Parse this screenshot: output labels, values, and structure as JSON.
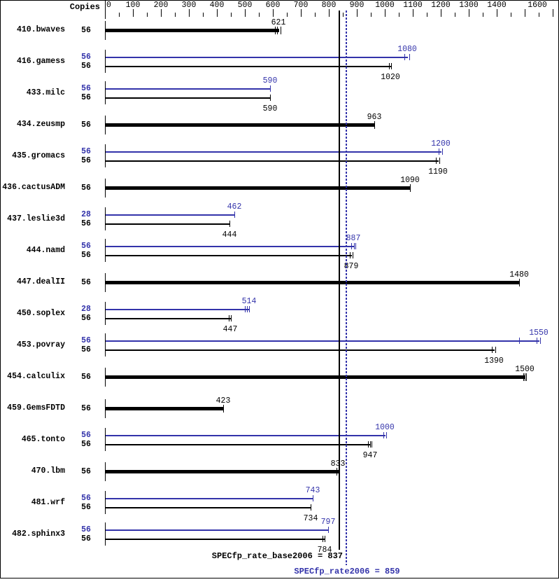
{
  "header": {
    "copies_label": "Copies"
  },
  "colors": {
    "peak_blue": "#3333aa",
    "base_black": "#000000",
    "background": "#ffffff"
  },
  "axis": {
    "min": 0,
    "max": 1600,
    "major_step": 100,
    "minor_step": 50,
    "tick_labels": [
      "0",
      "100",
      "200",
      "300",
      "400",
      "500",
      "600",
      "700",
      "800",
      "900",
      "1000",
      "1100",
      "1200",
      "1300",
      "1400",
      "1600"
    ],
    "skipped_label": "1500"
  },
  "footer": {
    "base_label": "SPECfp_rate_base2006 = 837",
    "peak_label": "SPECfp_rate2006 = 859"
  },
  "chart_data": {
    "type": "bar",
    "orientation": "horizontal",
    "title": "",
    "xlabel": "",
    "ylabel": "Copies",
    "xlim": [
      0,
      1600
    ],
    "grid": false,
    "legend": "none",
    "summary": {
      "SPECfp_rate_base2006": 837,
      "SPECfp_rate2006": 859
    },
    "reference_lines": [
      {
        "name": "base",
        "value": 837,
        "style": "solid",
        "color": "#000000"
      },
      {
        "name": "peak",
        "value": 859,
        "style": "dotted",
        "color": "#3333aa"
      }
    ],
    "benchmarks": [
      {
        "name": "410.bwaves",
        "bars": [
          {
            "series": "base",
            "copies": 56,
            "value": 621,
            "marks": [
              608,
              616,
              627
            ]
          }
        ]
      },
      {
        "name": "416.gamess",
        "bars": [
          {
            "series": "peak",
            "copies": 56,
            "value": 1080,
            "marks": [
              1070,
              1088
            ]
          },
          {
            "series": "base",
            "copies": 56,
            "value": 1020,
            "marks": [
              1014,
              1022
            ]
          }
        ]
      },
      {
        "name": "433.milc",
        "bars": [
          {
            "series": "peak",
            "copies": 56,
            "value": 590,
            "marks": [
              590
            ]
          },
          {
            "series": "base",
            "copies": 56,
            "value": 590,
            "marks": [
              590
            ]
          }
        ]
      },
      {
        "name": "434.zeusmp",
        "bars": [
          {
            "series": "base",
            "copies": 56,
            "value": 963,
            "marks": [
              963
            ]
          }
        ]
      },
      {
        "name": "435.gromacs",
        "bars": [
          {
            "series": "peak",
            "copies": 56,
            "value": 1200,
            "marks": [
              1192,
              1205
            ]
          },
          {
            "series": "base",
            "copies": 56,
            "value": 1190,
            "marks": [
              1183,
              1196
            ]
          }
        ]
      },
      {
        "name": "436.cactusADM",
        "bars": [
          {
            "series": "base",
            "copies": 56,
            "value": 1090,
            "marks": [
              1090
            ]
          }
        ]
      },
      {
        "name": "437.leslie3d",
        "bars": [
          {
            "series": "peak",
            "copies": 28,
            "value": 462,
            "marks": [
              462
            ]
          },
          {
            "series": "base",
            "copies": 56,
            "value": 444,
            "marks": [
              444
            ]
          }
        ]
      },
      {
        "name": "444.namd",
        "bars": [
          {
            "series": "peak",
            "copies": 56,
            "value": 887,
            "marks": [
              880,
              890,
              896
            ]
          },
          {
            "series": "base",
            "copies": 56,
            "value": 879,
            "marks": [
              874,
              884
            ]
          }
        ]
      },
      {
        "name": "447.dealII",
        "bars": [
          {
            "series": "base",
            "copies": 56,
            "value": 1480,
            "marks": [
              1480
            ]
          }
        ]
      },
      {
        "name": "450.soplex",
        "bars": [
          {
            "series": "peak",
            "copies": 28,
            "value": 514,
            "marks": [
              500,
              508,
              515
            ]
          },
          {
            "series": "base",
            "copies": 56,
            "value": 447,
            "marks": [
              442,
              450
            ]
          }
        ]
      },
      {
        "name": "453.povray",
        "bars": [
          {
            "series": "peak",
            "copies": 56,
            "value": 1550,
            "marks": [
              1480,
              1543,
              1554
            ]
          },
          {
            "series": "base",
            "copies": 56,
            "value": 1390,
            "marks": [
              1383,
              1395
            ]
          }
        ]
      },
      {
        "name": "454.calculix",
        "bars": [
          {
            "series": "base",
            "copies": 56,
            "value": 1500,
            "marks": [
              1494,
              1500,
              1506
            ]
          }
        ]
      },
      {
        "name": "459.GemsFDTD",
        "bars": [
          {
            "series": "base",
            "copies": 56,
            "value": 423,
            "marks": [
              423
            ]
          }
        ]
      },
      {
        "name": "465.tonto",
        "bars": [
          {
            "series": "peak",
            "copies": 56,
            "value": 1000,
            "marks": [
              994,
              1004
            ]
          },
          {
            "series": "base",
            "copies": 56,
            "value": 947,
            "marks": [
              940,
              947,
              953
            ]
          }
        ]
      },
      {
        "name": "470.lbm",
        "bars": [
          {
            "series": "base",
            "copies": 56,
            "value": 833,
            "marks": [
              827,
              835
            ]
          }
        ]
      },
      {
        "name": "481.wrf",
        "bars": [
          {
            "series": "peak",
            "copies": 56,
            "value": 743,
            "marks": [
              743
            ]
          },
          {
            "series": "base",
            "copies": 56,
            "value": 734,
            "marks": [
              734
            ]
          }
        ]
      },
      {
        "name": "482.sphinx3",
        "bars": [
          {
            "series": "peak",
            "copies": 56,
            "value": 797,
            "marks": [
              797
            ]
          },
          {
            "series": "base",
            "copies": 56,
            "value": 784,
            "marks": [
              778,
              786
            ]
          }
        ]
      }
    ]
  }
}
